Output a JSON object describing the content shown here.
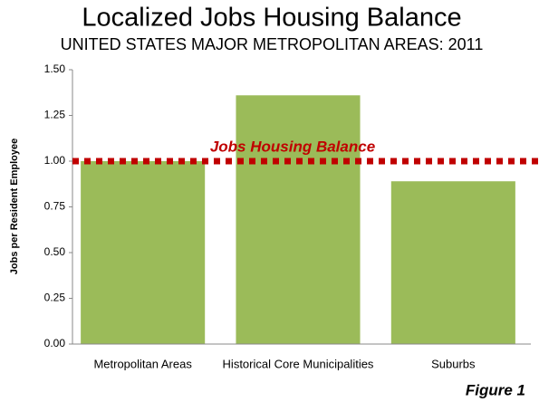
{
  "chart_data": {
    "type": "bar",
    "title": "Localized Jobs Housing Balance",
    "subtitle": "UNITED STATES MAJOR METROPOLITAN AREAS: 2011",
    "y_label": "Jobs per Resident Employee",
    "categories": [
      "Metropolitan Areas",
      "Historical Core Municipalities",
      "Suburbs"
    ],
    "values": [
      1.0,
      1.36,
      0.89
    ],
    "color": "#9bbb59",
    "ylim": [
      0,
      1.5
    ],
    "yticks": [
      {
        "value": 0,
        "label": "0.00"
      },
      {
        "value": 0.25,
        "label": "0.25"
      },
      {
        "value": 0.5,
        "label": "0.50"
      },
      {
        "value": 0.75,
        "label": "0.75"
      },
      {
        "value": 1,
        "label": "1.00"
      },
      {
        "value": 1.25,
        "label": "1.25"
      },
      {
        "value": 1.5,
        "label": "1.50"
      }
    ],
    "grid": false,
    "reference_line": {
      "value": 1.0,
      "label": "Jobs Housing Balance",
      "color": "#c00000"
    },
    "figure_note": "Figure 1"
  }
}
